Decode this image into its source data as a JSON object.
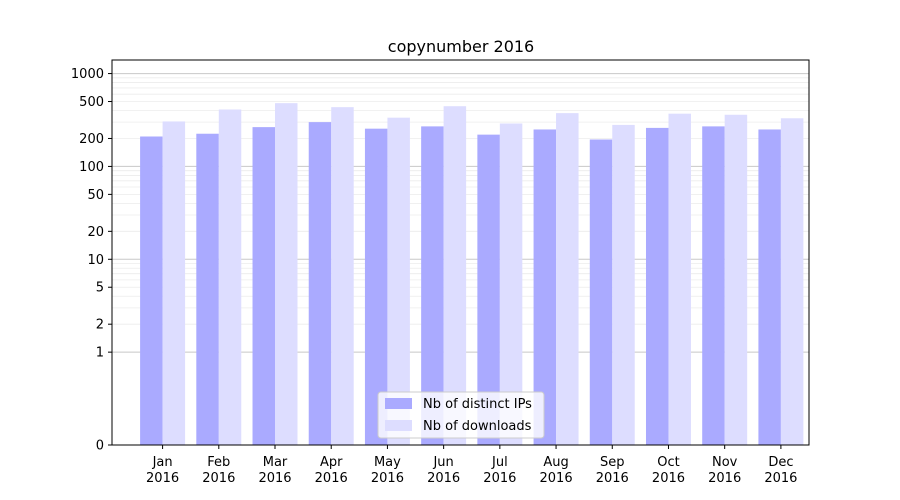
{
  "chart_data": {
    "type": "bar",
    "title": "copynumber 2016",
    "xlabel": "",
    "ylabel": "",
    "y_scale": "symlog",
    "ylim": [
      0,
      1400
    ],
    "y_ticks": [
      {
        "value": 0,
        "label": "0"
      },
      {
        "value": 1,
        "label": "1"
      },
      {
        "value": 2,
        "label": "2"
      },
      {
        "value": 5,
        "label": "5"
      },
      {
        "value": 10,
        "label": "10"
      },
      {
        "value": 20,
        "label": "20"
      },
      {
        "value": 50,
        "label": "50"
      },
      {
        "value": 100,
        "label": "100"
      },
      {
        "value": 200,
        "label": "200"
      },
      {
        "value": 500,
        "label": "500"
      },
      {
        "value": 1000,
        "label": "1000"
      }
    ],
    "grid": true,
    "legend_placement": "bottom-center",
    "categories": [
      {
        "month": "Jan",
        "year": "2016"
      },
      {
        "month": "Feb",
        "year": "2016"
      },
      {
        "month": "Mar",
        "year": "2016"
      },
      {
        "month": "Apr",
        "year": "2016"
      },
      {
        "month": "May",
        "year": "2016"
      },
      {
        "month": "Jun",
        "year": "2016"
      },
      {
        "month": "Jul",
        "year": "2016"
      },
      {
        "month": "Aug",
        "year": "2016"
      },
      {
        "month": "Sep",
        "year": "2016"
      },
      {
        "month": "Oct",
        "year": "2016"
      },
      {
        "month": "Nov",
        "year": "2016"
      },
      {
        "month": "Dec",
        "year": "2016"
      }
    ],
    "series": [
      {
        "name": "Nb of distinct IPs",
        "color": "#aaaaff",
        "values": [
          210,
          225,
          265,
          300,
          255,
          270,
          220,
          250,
          195,
          260,
          270,
          250
        ]
      },
      {
        "name": "Nb of downloads",
        "color": "#ddddff",
        "values": [
          305,
          410,
          480,
          435,
          335,
          445,
          290,
          375,
          280,
          370,
          360,
          330
        ]
      }
    ]
  }
}
